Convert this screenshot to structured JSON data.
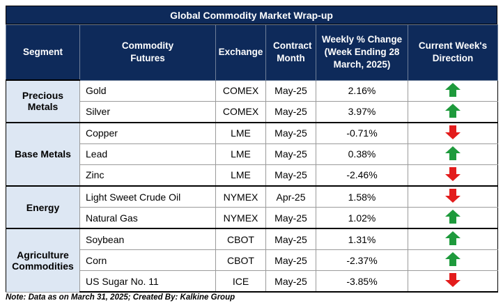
{
  "title": "Global Commodity Market Wrap-up",
  "headers": {
    "segment": "Segment",
    "futures": "Commodity Futures",
    "exchange": "Exchange",
    "contract": "Contract Month",
    "change": "Weekly % Change (Week Ending  28 March, 2025)",
    "direction": "Current Week's Direction"
  },
  "rows": [
    {
      "segment": "Precious Metals",
      "future": "Gold",
      "exchange": "COMEX",
      "month": "May-25",
      "change": "2.16%",
      "direction": "up"
    },
    {
      "segment": "Precious Metals",
      "future": "Silver",
      "exchange": "COMEX",
      "month": "May-25",
      "change": "3.97%",
      "direction": "up"
    },
    {
      "segment": "Base Metals",
      "future": "Copper",
      "exchange": "LME",
      "month": "May-25",
      "change": "-0.71%",
      "direction": "down"
    },
    {
      "segment": "Base Metals",
      "future": "Lead",
      "exchange": "LME",
      "month": "May-25",
      "change": "0.38%",
      "direction": "up"
    },
    {
      "segment": "Base Metals",
      "future": "Zinc",
      "exchange": "LME",
      "month": "May-25",
      "change": "-2.46%",
      "direction": "down"
    },
    {
      "segment": "Energy",
      "future": "Light Sweet Crude Oil",
      "exchange": "NYMEX",
      "month": "Apr-25",
      "change": "1.58%",
      "direction": "down"
    },
    {
      "segment": "Energy",
      "future": "Natural Gas",
      "exchange": "NYMEX",
      "month": "May-25",
      "change": "1.02%",
      "direction": "up"
    },
    {
      "segment": "Agriculture Commodities",
      "future": "Soybean",
      "exchange": "CBOT",
      "month": "May-25",
      "change": "1.31%",
      "direction": "up"
    },
    {
      "segment": "Agriculture Commodities",
      "future": "Corn",
      "exchange": "CBOT",
      "month": "May-25",
      "change": "-2.37%",
      "direction": "up"
    },
    {
      "segment": "Agriculture Commodities",
      "future": "US Sugar No. 11",
      "exchange": "ICE",
      "month": "May-25",
      "change": "-3.85%",
      "direction": "down"
    }
  ],
  "note": "Note: Data as on March 31, 2025; Created By: Kalkine Group",
  "colors": {
    "header": "#0e2a5a",
    "segment_bg": "#dde7f3",
    "up": "#1e9a3c",
    "down": "#e31c1c"
  }
}
